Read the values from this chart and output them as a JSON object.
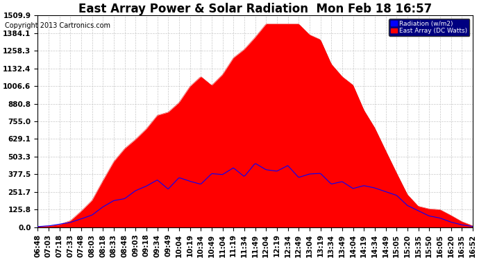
{
  "title": "East Array Power & Solar Radiation  Mon Feb 18 16:57",
  "copyright": "Copyright 2013 Cartronics.com",
  "legend_labels": [
    "Radiation (w/m2)",
    "East Array (DC Watts)"
  ],
  "background_color": "#ffffff",
  "plot_bg_color": "#ffffff",
  "grid_color": "#c8c8c8",
  "y_min": 0.0,
  "y_max": 1509.9,
  "y_ticks": [
    0.0,
    125.8,
    251.7,
    377.5,
    503.3,
    629.1,
    755.0,
    880.8,
    1006.6,
    1132.4,
    1258.3,
    1384.1,
    1509.9
  ],
  "x_labels": [
    "06:48",
    "07:03",
    "07:18",
    "07:33",
    "07:48",
    "08:03",
    "08:18",
    "08:33",
    "08:48",
    "09:03",
    "09:18",
    "09:34",
    "09:49",
    "10:04",
    "10:19",
    "10:34",
    "10:49",
    "11:04",
    "11:19",
    "11:34",
    "11:49",
    "12:04",
    "12:19",
    "12:34",
    "12:49",
    "13:04",
    "13:19",
    "13:34",
    "13:49",
    "14:04",
    "14:19",
    "14:34",
    "14:49",
    "15:05",
    "15:20",
    "15:35",
    "15:50",
    "16:05",
    "16:20",
    "16:35",
    "16:52"
  ],
  "title_fontsize": 12,
  "axis_fontsize": 7.5,
  "copyright_fontsize": 7
}
